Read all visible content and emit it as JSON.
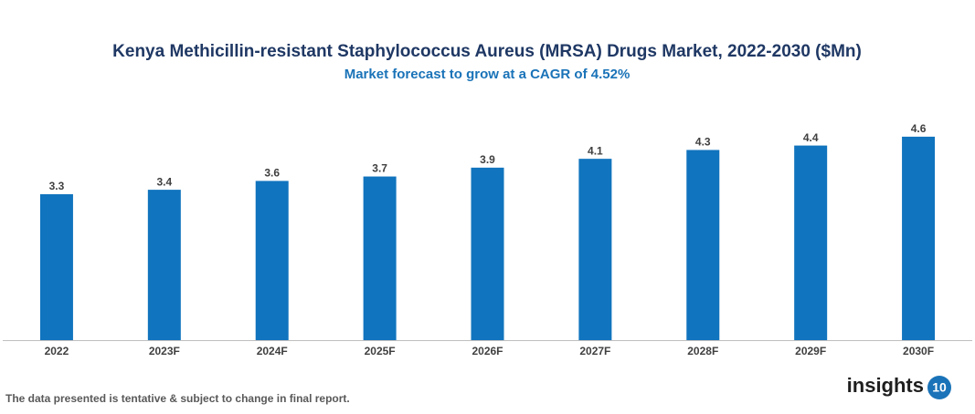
{
  "chart_data": {
    "type": "bar",
    "title": "Kenya Methicillin-resistant Staphylococcus Aureus (MRSA) Drugs Market, 2022-2030 ($Mn)",
    "subtitle": "Market forecast to grow at a CAGR of 4.52%",
    "categories": [
      "2022",
      "2023F",
      "2024F",
      "2025F",
      "2026F",
      "2027F",
      "2028F",
      "2029F",
      "2030F"
    ],
    "values": [
      3.3,
      3.4,
      3.6,
      3.7,
      3.9,
      4.1,
      4.3,
      4.4,
      4.6
    ],
    "color": "#1174be",
    "ylim": [
      0,
      5
    ]
  },
  "footer": {
    "note": "The data presented is tentative & subject to change in final report.",
    "logo_text": "insights",
    "logo_number": "10"
  }
}
